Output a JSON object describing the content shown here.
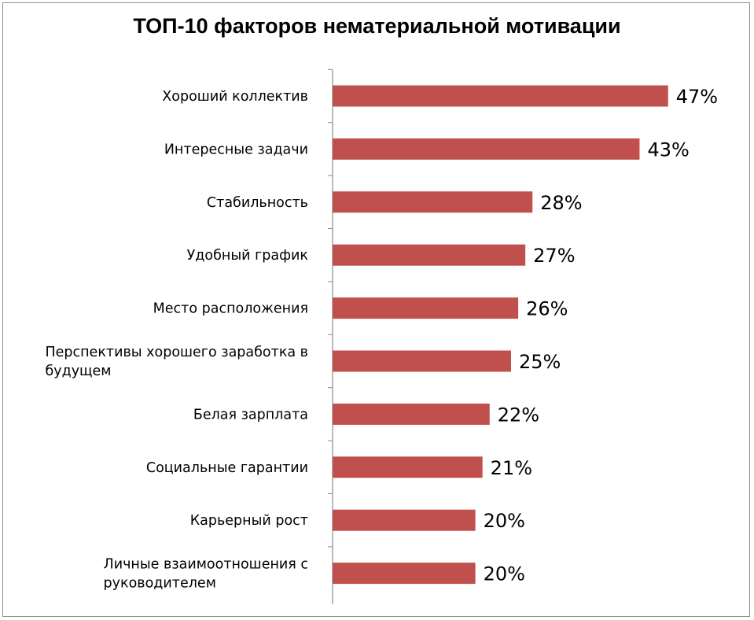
{
  "chart_data": {
    "type": "bar",
    "orientation": "horizontal",
    "title": "ТОП-10 факторов нематериальной мотивации",
    "categories": [
      "Хороший коллектив",
      "Интересные задачи",
      "Стабильность",
      "Удобный график",
      "Место расположения",
      "Перспективы хорошего заработка в будущем",
      "Белая зарплата",
      "Социальные гарантии",
      "Карьерный  рост",
      "Личные взаимоотношения с руководителем"
    ],
    "category_lines": [
      [
        "Хороший коллектив"
      ],
      [
        "Интересные задачи"
      ],
      [
        "Стабильность"
      ],
      [
        "Удобный график"
      ],
      [
        "Место расположения"
      ],
      [
        "Перспективы хорошего заработка в",
        "будущем"
      ],
      [
        "Белая зарплата"
      ],
      [
        "Социальные гарантии"
      ],
      [
        "Карьерный  рост"
      ],
      [
        "Личные взаимоотношения с",
        "руководителем"
      ]
    ],
    "values": [
      47,
      43,
      28,
      27,
      26,
      25,
      22,
      21,
      20,
      20
    ],
    "value_labels": [
      "47%",
      "43%",
      "28%",
      "27%",
      "26%",
      "25%",
      "22%",
      "21%",
      "20%",
      "20%"
    ],
    "bar_color": "#c0504d",
    "legend": "none",
    "grid": false
  }
}
